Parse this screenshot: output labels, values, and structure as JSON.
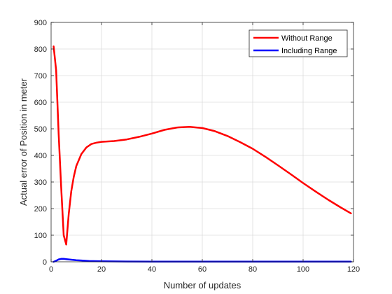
{
  "chart_data": {
    "type": "line",
    "title": "",
    "xlabel": "Number of updates",
    "ylabel": "Actual error of Position in meter",
    "xlim": [
      0,
      120
    ],
    "ylim": [
      0,
      900
    ],
    "xticks": [
      0,
      20,
      40,
      60,
      80,
      100,
      120
    ],
    "yticks": [
      0,
      100,
      200,
      300,
      400,
      500,
      600,
      700,
      800,
      900
    ],
    "grid": true,
    "legend_position": "top-right",
    "series": [
      {
        "name": "Without Range",
        "color": "#ff0000",
        "x": [
          1,
          2,
          3,
          4,
          5,
          6,
          7,
          8,
          9,
          10,
          12,
          14,
          16,
          18,
          20,
          25,
          30,
          35,
          40,
          45,
          50,
          55,
          60,
          65,
          70,
          75,
          80,
          85,
          90,
          95,
          100,
          105,
          110,
          115,
          119
        ],
        "y": [
          810,
          720,
          480,
          280,
          100,
          65,
          180,
          265,
          320,
          360,
          405,
          430,
          443,
          448,
          451,
          454,
          460,
          470,
          482,
          496,
          505,
          507,
          503,
          491,
          473,
          450,
          425,
          395,
          363,
          330,
          296,
          264,
          233,
          204,
          182
        ]
      },
      {
        "name": "Including Range",
        "color": "#0000ff",
        "x": [
          1,
          2,
          3,
          4,
          5,
          6,
          8,
          10,
          12,
          15,
          20,
          30,
          40,
          60,
          80,
          100,
          119
        ],
        "y": [
          0,
          4,
          9,
          11,
          11,
          10,
          8,
          6,
          5,
          3,
          2,
          1,
          0.5,
          0.5,
          0.5,
          0.5,
          0.5
        ]
      }
    ]
  }
}
